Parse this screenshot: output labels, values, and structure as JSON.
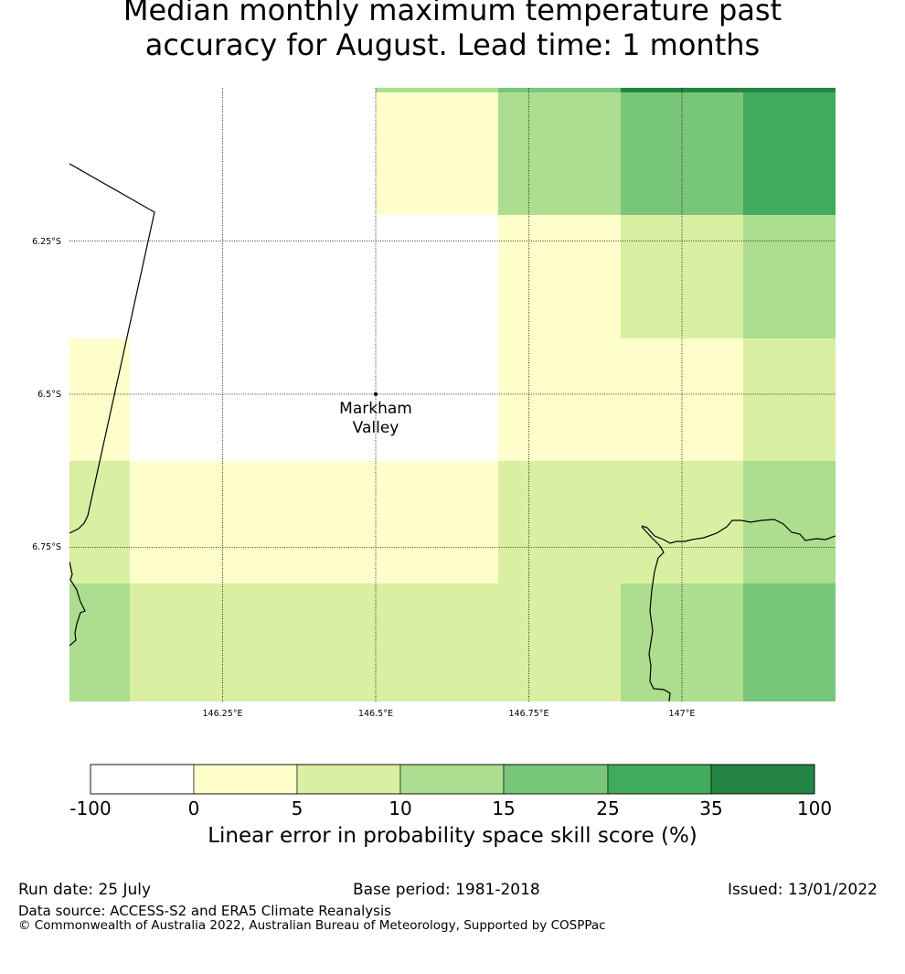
{
  "title": {
    "line1": "Median monthly maximum temperature past",
    "line2": "accuracy for August. Lead time: 1 months"
  },
  "map": {
    "lon_labels": [
      "146.25°E",
      "146.5°E",
      "146.75°E",
      "147°E"
    ],
    "lat_labels": [
      "6.25°S",
      "6.5°S",
      "6.75°S"
    ],
    "place": {
      "name_line1": "Markham",
      "name_line2": "Valley"
    }
  },
  "colorbar": {
    "title": "Linear error in probability space skill score (%)",
    "ticks": [
      "-100",
      "0",
      "5",
      "10",
      "15",
      "25",
      "35",
      "100"
    ],
    "colors": [
      "#ffffff",
      "#ffffcc",
      "#d9f0a3",
      "#addd8e",
      "#78c679",
      "#41ab5d",
      "#238443"
    ]
  },
  "footer": {
    "run_date": "Run date: 25 July",
    "base_period": "Base period: 1981-2018",
    "issued": "Issued: 13/01/2022",
    "data_source": "Data source: ACCESS-S2 and ERA5 Climate Reanalysis",
    "copyright": "© Commonwealth of Australia 2022, Australian Bureau of Meteorology, Supported by COSPPac"
  }
}
